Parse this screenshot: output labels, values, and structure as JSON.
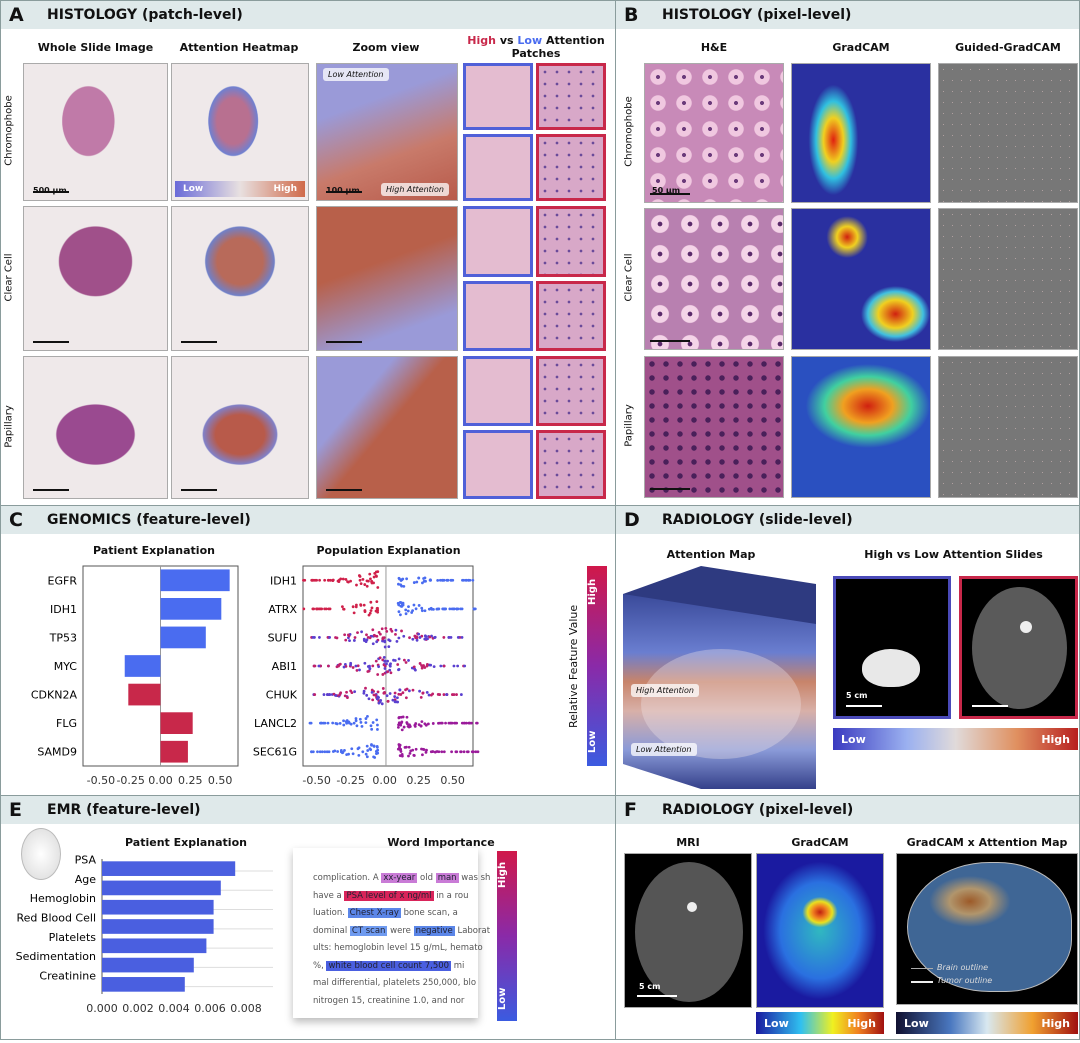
{
  "panelA": {
    "letter": "A",
    "title": "HISTOLOGY (patch-level)",
    "columns": [
      "Whole Slide Image",
      "Attention Heatmap",
      "Zoom view"
    ],
    "patches_title": {
      "high": "High",
      "vs": " vs ",
      "low": "Low",
      "rest": " Attention",
      "line2": "Patches"
    },
    "rows": [
      "Chromophobe",
      "Clear Cell",
      "Papillary"
    ],
    "scale_wsi": "500 µm",
    "scale_zoom": "100 µm",
    "low_attention": "Low Attention",
    "high_attention": "High Attention",
    "cbar_low": "Low",
    "cbar_high": "High"
  },
  "panelB": {
    "letter": "B",
    "title": "HISTOLOGY (pixel-level)",
    "columns": [
      "H&E",
      "GradCAM",
      "Guided-GradCAM"
    ],
    "rows": [
      "Chromophobe",
      "Clear Cell",
      "Papillary"
    ],
    "scale": "50 µm"
  },
  "panelC": {
    "letter": "C",
    "title": "GENOMICS (feature-level)",
    "colorbar_label": "Relative Feature Value",
    "cbar_high": "High",
    "cbar_low": "Low"
  },
  "panelD": {
    "letter": "D",
    "title": "RADIOLOGY (slide-level)",
    "attention_map": "Attention Map",
    "slides_title": "High vs Low Attention Slides",
    "high_attention": "High Attention",
    "low_attention": "Low Attention",
    "scale": "5 cm",
    "cbar_low": "Low",
    "cbar_high": "High"
  },
  "panelE": {
    "letter": "E",
    "title": "EMR (feature-level)",
    "word_title": "Word Importance",
    "cbar_high": "High",
    "cbar_low": "Low",
    "word_lines": [
      [
        {
          "t": "complication. A "
        },
        {
          "t": "xx-year",
          "c": "#c97bd6"
        },
        {
          "t": " old "
        },
        {
          "t": "man",
          "c": "#c97bd6"
        },
        {
          "t": " was sh"
        }
      ],
      [
        {
          "t": "have a "
        },
        {
          "t": "PSA level of x ng/ml",
          "c": "#d9245a"
        },
        {
          "t": " in a rou"
        }
      ],
      [
        {
          "t": "luation. "
        },
        {
          "t": "Chest X-ray",
          "c": "#5b86e8"
        },
        {
          "t": " bone scan, a"
        }
      ],
      [
        {
          "t": "dominal "
        },
        {
          "t": "CT scan",
          "c": "#6f9bf0"
        },
        {
          "t": " were "
        },
        {
          "t": "negative",
          "c": "#5b86e8"
        },
        {
          "t": " Laborat"
        }
      ],
      [
        {
          "t": "ults: hemoglobin level 15 g/mL, hemato"
        }
      ],
      [
        {
          "t": "%, "
        },
        {
          "t": "white blood cell count 7,500",
          "c": "#4a5fe0"
        },
        {
          "t": " mi"
        }
      ],
      [
        {
          "t": "mal differential, platelets 250,000, blo"
        }
      ],
      [
        {
          "t": " nitrogen 15, creatinine 1.0, and nor"
        }
      ]
    ]
  },
  "panelF": {
    "letter": "F",
    "title": "RADIOLOGY (pixel-level)",
    "columns": [
      "MRI",
      "GradCAM",
      "GradCAM x Attention Map"
    ],
    "scale": "5 cm",
    "brain_outline": "Brain outline",
    "tumor_outline": "Tumor outline",
    "cbar_low": "Low",
    "cbar_high": "High"
  },
  "chart_data": [
    {
      "id": "genomics-patient",
      "type": "bar",
      "orientation": "horizontal",
      "title": "Patient Explanation",
      "categories": [
        "EGFR",
        "IDH1",
        "TP53",
        "MYC",
        "CDKN2A",
        "FLG",
        "SAMD9"
      ],
      "values": [
        0.58,
        0.51,
        0.38,
        -0.3,
        -0.27,
        0.27,
        0.23
      ],
      "bar_colors": [
        "#4a6cf0",
        "#4a6cf0",
        "#4a6cf0",
        "#4a6cf0",
        "#c8284a",
        "#c8284a",
        "#c8284a"
      ],
      "xlim": [
        -0.65,
        0.65
      ],
      "xticks": [
        "-0.50",
        "-0.25",
        "0.00",
        "0.25",
        "0.50"
      ],
      "xtick_values": [
        -0.5,
        -0.25,
        0,
        0.25,
        0.5
      ]
    },
    {
      "id": "genomics-population",
      "type": "scatter",
      "subtype": "beeswarm",
      "title": "Population Explanation",
      "categories": [
        "IDH1",
        "ATRX",
        "SUFU",
        "ABI1",
        "CHUK",
        "LANCL2",
        "SEC61G"
      ],
      "high_value_side": [
        "negative",
        "negative",
        "mixed",
        "mixed",
        "mixed",
        "positive",
        "positive"
      ],
      "xlim": [
        -0.6,
        0.65
      ],
      "xticks": [
        "-0.50",
        "-0.25",
        "0.00",
        "0.25",
        "0.50"
      ],
      "xtick_values": [
        -0.5,
        -0.25,
        0,
        0.25,
        0.5
      ]
    },
    {
      "id": "emr-patient",
      "type": "bar",
      "orientation": "horizontal",
      "title": "Patient Explanation",
      "categories": [
        "PSA",
        "Age",
        "Hemoglobin",
        "Red Blood Cell",
        "Platelets",
        "Sedimentation",
        "Creatinine"
      ],
      "values": [
        0.0074,
        0.0066,
        0.0062,
        0.0062,
        0.0058,
        0.0051,
        0.0046
      ],
      "bar_color": "#4a5fe0",
      "xlim": [
        0,
        0.0095
      ],
      "xticks": [
        "0.000",
        "0.002",
        "0.004",
        "0.006",
        "0.008"
      ],
      "xtick_values": [
        0,
        0.002,
        0.004,
        0.006,
        0.008
      ]
    }
  ]
}
